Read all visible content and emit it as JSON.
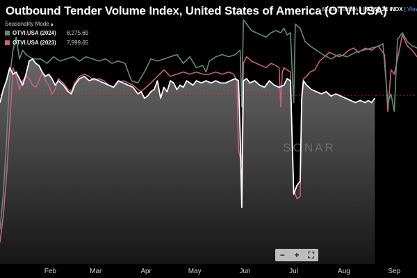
{
  "title": "Outbound Tender Volume Index, United States of America (OTVI.USA)",
  "ticker": {
    "bullet": "•",
    "change": "65.59 ( -0.66% )",
    "sep1": "|",
    "value": "9,867.34 INDX",
    "sep2": "|",
    "view": "View"
  },
  "legend": {
    "mode_label": "Seasonality Mode",
    "mode_caret": "▴",
    "items": [
      {
        "name": "OTVI.USA (2024)",
        "value": "8,275.69",
        "color": "#5f8f7f"
      },
      {
        "name": "OTVI.USA (2023)",
        "value": "7,999.65",
        "color": "#d05b86"
      }
    ]
  },
  "watermark": "SONAR",
  "zoom": {
    "minus": "−",
    "plus": "+",
    "fit": "⛶"
  },
  "colors": {
    "current": "#ffffff",
    "area_top": "#7a7a7a",
    "area_bottom": "#1a1a1a",
    "refline": "#b01c1c"
  },
  "chart_data": {
    "type": "line",
    "x_unit": "day of year",
    "x_ticks": [
      {
        "label": "Feb",
        "x": 32
      },
      {
        "label": "Mar",
        "x": 60
      },
      {
        "label": "Apr",
        "x": 91
      },
      {
        "label": "May",
        "x": 121
      },
      {
        "label": "Jun",
        "x": 152
      },
      {
        "label": "Jul",
        "x": 182
      },
      {
        "label": "Aug",
        "x": 213
      },
      {
        "label": "Sep",
        "x": 244
      }
    ],
    "xlim": [
      1,
      258
    ],
    "ylim": [
      6000,
      11700
    ],
    "reference_line": 9867.34,
    "series": [
      {
        "name": "OTVI.USA (2024)",
        "color": "#5f8f7f",
        "points": [
          [
            1,
            6800
          ],
          [
            3,
            7600
          ],
          [
            5,
            8800
          ],
          [
            7,
            10300
          ],
          [
            9,
            10900
          ],
          [
            11,
            11200
          ],
          [
            13,
            10700
          ],
          [
            15,
            10900
          ],
          [
            17,
            10800
          ],
          [
            19,
            10750
          ],
          [
            22,
            10700
          ],
          [
            26,
            10700
          ],
          [
            30,
            10600
          ],
          [
            34,
            10750
          ],
          [
            38,
            10650
          ],
          [
            42,
            10700
          ],
          [
            46,
            10750
          ],
          [
            50,
            10650
          ],
          [
            54,
            10750
          ],
          [
            58,
            10700
          ],
          [
            62,
            10650
          ],
          [
            66,
            10700
          ],
          [
            70,
            10600
          ],
          [
            74,
            10650
          ],
          [
            78,
            10600
          ],
          [
            82,
            10200
          ],
          [
            86,
            10150
          ],
          [
            90,
            10400
          ],
          [
            94,
            10700
          ],
          [
            98,
            10650
          ],
          [
            102,
            10700
          ],
          [
            106,
            10750
          ],
          [
            110,
            10800
          ],
          [
            114,
            10600
          ],
          [
            118,
            10750
          ],
          [
            122,
            10500
          ],
          [
            126,
            10550
          ],
          [
            128,
            10400
          ],
          [
            130,
            10650
          ],
          [
            134,
            10750
          ],
          [
            138,
            10800
          ],
          [
            142,
            10750
          ],
          [
            146,
            10800
          ],
          [
            149,
            10900
          ],
          [
            150,
            9600
          ],
          [
            151,
            11600
          ],
          [
            153,
            11500
          ],
          [
            156,
            11350
          ],
          [
            159,
            11300
          ],
          [
            162,
            11250
          ],
          [
            165,
            11200
          ],
          [
            168,
            11300
          ],
          [
            171,
            11350
          ],
          [
            174,
            11300
          ],
          [
            176,
            11400
          ],
          [
            178,
            11250
          ],
          [
            180,
            11300
          ],
          [
            182,
            9700
          ],
          [
            183,
            11500
          ],
          [
            186,
            11400
          ],
          [
            189,
            11100
          ],
          [
            192,
            11000
          ],
          [
            196,
            10900
          ],
          [
            200,
            10800
          ],
          [
            205,
            10700
          ],
          [
            210,
            10800
          ],
          [
            215,
            10750
          ],
          [
            220,
            10850
          ],
          [
            225,
            10900
          ],
          [
            230,
            10950
          ],
          [
            235,
            11000
          ],
          [
            237,
            11050
          ],
          [
            240,
            9700
          ],
          [
            242,
            9900
          ],
          [
            244,
            9500
          ],
          [
            246,
            11150
          ],
          [
            249,
            11300
          ],
          [
            252,
            11100
          ],
          [
            255,
            11000
          ],
          [
            258,
            10950
          ]
        ]
      },
      {
        "name": "OTVI.USA (2023)",
        "color": "#d05b86",
        "points": [
          [
            1,
            6500
          ],
          [
            3,
            7100
          ],
          [
            5,
            8000
          ],
          [
            7,
            9200
          ],
          [
            9,
            10500
          ],
          [
            11,
            10300
          ],
          [
            13,
            10000
          ],
          [
            15,
            10200
          ],
          [
            17,
            10300
          ],
          [
            19,
            10250
          ],
          [
            21,
            10100
          ],
          [
            23,
            10050
          ],
          [
            25,
            10200
          ],
          [
            27,
            10400
          ],
          [
            29,
            10200
          ],
          [
            31,
            10100
          ],
          [
            33,
            9900
          ],
          [
            35,
            10000
          ],
          [
            37,
            10250
          ],
          [
            40,
            10150
          ],
          [
            43,
            10000
          ],
          [
            45,
            9950
          ],
          [
            47,
            10150
          ],
          [
            50,
            10300
          ],
          [
            53,
            10350
          ],
          [
            56,
            10300
          ],
          [
            59,
            10200
          ],
          [
            62,
            10250
          ],
          [
            65,
            10200
          ],
          [
            68,
            10100
          ],
          [
            71,
            10050
          ],
          [
            74,
            10150
          ],
          [
            77,
            10200
          ],
          [
            80,
            10150
          ],
          [
            83,
            10100
          ],
          [
            86,
            10000
          ],
          [
            88,
            9950
          ],
          [
            91,
            10050
          ],
          [
            94,
            10150
          ],
          [
            98,
            10300
          ],
          [
            102,
            10450
          ],
          [
            106,
            10300
          ],
          [
            110,
            10350
          ],
          [
            114,
            10400
          ],
          [
            118,
            10350
          ],
          [
            122,
            10400
          ],
          [
            126,
            10350
          ],
          [
            130,
            10350
          ],
          [
            134,
            10400
          ],
          [
            138,
            10350
          ],
          [
            142,
            10400
          ],
          [
            145,
            10350
          ],
          [
            147,
            10200
          ],
          [
            148,
            8600
          ],
          [
            150,
            8300
          ],
          [
            151,
            10600
          ],
          [
            153,
            10750
          ],
          [
            156,
            10650
          ],
          [
            159,
            10600
          ],
          [
            162,
            10550
          ],
          [
            165,
            10500
          ],
          [
            168,
            10600
          ],
          [
            171,
            10550
          ],
          [
            173,
            10500
          ],
          [
            174,
            9600
          ],
          [
            175,
            10400
          ],
          [
            176,
            10500
          ],
          [
            178,
            10450
          ],
          [
            180,
            10400
          ],
          [
            182,
            7700
          ],
          [
            184,
            7500
          ],
          [
            186,
            7550
          ],
          [
            187,
            9900
          ],
          [
            188,
            10250
          ],
          [
            190,
            10300
          ],
          [
            192,
            10400
          ],
          [
            195,
            10450
          ],
          [
            198,
            10650
          ],
          [
            201,
            10750
          ],
          [
            204,
            10850
          ],
          [
            207,
            10800
          ],
          [
            210,
            10750
          ],
          [
            213,
            10800
          ],
          [
            216,
            10900
          ],
          [
            219,
            10950
          ],
          [
            222,
            10850
          ],
          [
            226,
            10950
          ],
          [
            230,
            10900
          ],
          [
            234,
            11000
          ],
          [
            238,
            10800
          ],
          [
            240,
            9500
          ],
          [
            242,
            10450
          ],
          [
            244,
            10350
          ],
          [
            246,
            10700
          ],
          [
            249,
            11250
          ],
          [
            252,
            11000
          ],
          [
            255,
            10900
          ],
          [
            258,
            10750
          ]
        ]
      },
      {
        "name": "",
        "color": "#ffffff",
        "points": [
          [
            1,
            9700
          ],
          [
            3,
            10000
          ],
          [
            5,
            10200
          ],
          [
            7,
            10500
          ],
          [
            9,
            10350
          ],
          [
            11,
            10400
          ],
          [
            13,
            10250
          ],
          [
            15,
            10100
          ],
          [
            17,
            10350
          ],
          [
            19,
            10650
          ],
          [
            21,
            10700
          ],
          [
            23,
            10600
          ],
          [
            25,
            10550
          ],
          [
            27,
            10400
          ],
          [
            29,
            10300
          ],
          [
            31,
            10350
          ],
          [
            33,
            10250
          ],
          [
            35,
            10100
          ],
          [
            37,
            10200
          ],
          [
            40,
            10100
          ],
          [
            43,
            9950
          ],
          [
            45,
            9900
          ],
          [
            47,
            10100
          ],
          [
            50,
            10250
          ],
          [
            53,
            10300
          ],
          [
            56,
            10200
          ],
          [
            59,
            10250
          ],
          [
            62,
            10200
          ],
          [
            65,
            10150
          ],
          [
            68,
            10100
          ],
          [
            71,
            10050
          ],
          [
            74,
            10200
          ],
          [
            77,
            10150
          ],
          [
            80,
            10100
          ],
          [
            83,
            10050
          ],
          [
            86,
            9900
          ],
          [
            88,
            9950
          ],
          [
            90,
            9800
          ],
          [
            92,
            9850
          ],
          [
            94,
            9950
          ],
          [
            96,
            10000
          ],
          [
            98,
            10200
          ],
          [
            100,
            9800
          ],
          [
            102,
            10050
          ],
          [
            104,
            9950
          ],
          [
            106,
            10200
          ],
          [
            108,
            10150
          ],
          [
            110,
            10000
          ],
          [
            112,
            10100
          ],
          [
            114,
            10050
          ],
          [
            116,
            10200
          ],
          [
            118,
            10150
          ],
          [
            120,
            10100
          ],
          [
            122,
            10200
          ],
          [
            125,
            10150
          ],
          [
            128,
            10200
          ],
          [
            131,
            10150
          ],
          [
            134,
            10200
          ],
          [
            137,
            10150
          ],
          [
            140,
            10150
          ],
          [
            143,
            10200
          ],
          [
            146,
            10250
          ],
          [
            148,
            10200
          ],
          [
            149,
            9000
          ],
          [
            150,
            7300
          ],
          [
            151,
            10200
          ],
          [
            153,
            10250
          ],
          [
            155,
            10150
          ],
          [
            158,
            10200
          ],
          [
            161,
            10100
          ],
          [
            164,
            10050
          ],
          [
            167,
            10200
          ],
          [
            170,
            10100
          ],
          [
            173,
            10050
          ],
          [
            176,
            10100
          ],
          [
            178,
            10250
          ],
          [
            180,
            10200
          ],
          [
            182,
            7600
          ],
          [
            184,
            7800
          ],
          [
            186,
            7900
          ],
          [
            187,
            9800
          ],
          [
            188,
            10200
          ],
          [
            190,
            10100
          ],
          [
            193,
            10000
          ],
          [
            196,
            9950
          ],
          [
            199,
            9900
          ],
          [
            202,
            9950
          ],
          [
            205,
            9850
          ],
          [
            208,
            9900
          ],
          [
            211,
            9850
          ],
          [
            214,
            9800
          ],
          [
            217,
            9750
          ],
          [
            220,
            9700
          ],
          [
            223,
            9750
          ],
          [
            226,
            9700
          ],
          [
            228,
            9750
          ],
          [
            230,
            9700
          ],
          [
            232,
            9800
          ]
        ]
      }
    ]
  }
}
